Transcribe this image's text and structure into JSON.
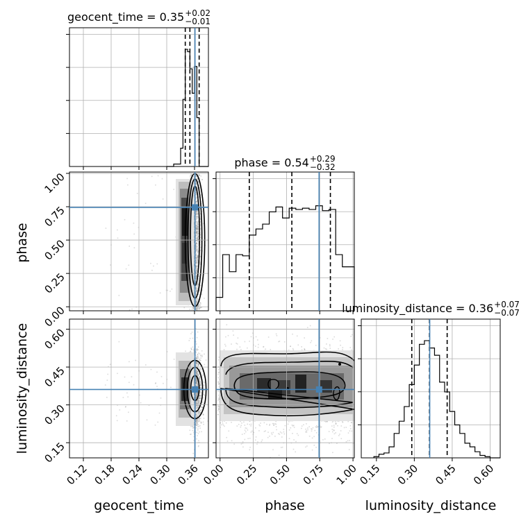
{
  "chart_data": {
    "type": "corner",
    "parameters": [
      "geocent_time",
      "phase",
      "luminosity_distance"
    ],
    "titles": {
      "geocent_time": {
        "name": "geocent_time",
        "median": "0.35",
        "plus": "+0.02",
        "minus": "−0.01"
      },
      "phase": {
        "name": "phase",
        "median": "0.54",
        "plus": "+0.29",
        "minus": "−0.32"
      },
      "luminosity_distance": {
        "name": "luminosity_distance",
        "median": "0.36",
        "plus": "+0.07",
        "minus": "−0.07"
      }
    },
    "axes": {
      "geocent_time": {
        "label": "geocent_time",
        "range": [
          0.09,
          0.39
        ],
        "ticks": [
          0.12,
          0.18,
          0.24,
          0.3,
          0.36
        ],
        "tick_labels": [
          "0.12",
          "0.18",
          "0.24",
          "0.30",
          "0.36"
        ]
      },
      "phase": {
        "label": "phase",
        "range": [
          -0.03,
          1.01
        ],
        "ticks": [
          0.0,
          0.25,
          0.5,
          0.75,
          1.0
        ],
        "tick_labels": [
          "0.00",
          "0.25",
          "0.50",
          "0.75",
          "1.00"
        ]
      },
      "luminosity_distance": {
        "label": "luminosity_distance",
        "range": [
          0.09,
          0.64
        ],
        "ticks": [
          0.15,
          0.3,
          0.45,
          0.6
        ],
        "tick_labels": [
          "0.15",
          "0.30",
          "0.45",
          "0.60"
        ]
      }
    },
    "truths": {
      "geocent_time": 0.361,
      "phase": 0.745,
      "luminosity_distance": 0.361
    },
    "quantile_lines": {
      "geocent_time": [
        0.34,
        0.35,
        0.37
      ],
      "phase": [
        0.22,
        0.54,
        0.83
      ],
      "luminosity_distance": [
        0.29,
        0.36,
        0.43
      ]
    },
    "histograms": {
      "geocent_time": {
        "edges": [
          0.3,
          0.315,
          0.33,
          0.335,
          0.34,
          0.345,
          0.35,
          0.355,
          0.36,
          0.365,
          0.37,
          0.38
        ],
        "counts": [
          0.0,
          0.02,
          0.15,
          0.55,
          0.96,
          0.94,
          0.8,
          0.6,
          0.82,
          0.4,
          0.0
        ]
      },
      "phase": {
        "edges": [
          -0.03,
          0.02,
          0.07,
          0.12,
          0.17,
          0.22,
          0.27,
          0.32,
          0.37,
          0.42,
          0.47,
          0.52,
          0.57,
          0.62,
          0.67,
          0.72,
          0.77,
          0.82,
          0.87,
          0.92,
          0.97,
          1.01
        ],
        "counts": [
          0.11,
          0.46,
          0.32,
          0.46,
          0.45,
          0.62,
          0.67,
          0.71,
          0.81,
          0.85,
          0.76,
          0.84,
          0.83,
          0.84,
          0.83,
          0.86,
          0.82,
          0.83,
          0.46,
          0.36,
          0.36
        ]
      },
      "luminosity_distance": {
        "edges": [
          0.14,
          0.16,
          0.18,
          0.2,
          0.22,
          0.24,
          0.26,
          0.28,
          0.3,
          0.32,
          0.34,
          0.36,
          0.38,
          0.4,
          0.42,
          0.44,
          0.46,
          0.48,
          0.5,
          0.52,
          0.54,
          0.56,
          0.58,
          0.6,
          0.62
        ],
        "counts": [
          0.01,
          0.03,
          0.04,
          0.09,
          0.2,
          0.3,
          0.42,
          0.6,
          0.76,
          0.93,
          0.96,
          0.9,
          0.84,
          0.62,
          0.54,
          0.38,
          0.27,
          0.2,
          0.12,
          0.09,
          0.05,
          0.02,
          0.01,
          0.0
        ]
      }
    },
    "grid": true,
    "colors": {
      "truth": "#4682b4",
      "hist": "#000000",
      "grid": "#b0b0b0",
      "points": "#999999"
    }
  }
}
